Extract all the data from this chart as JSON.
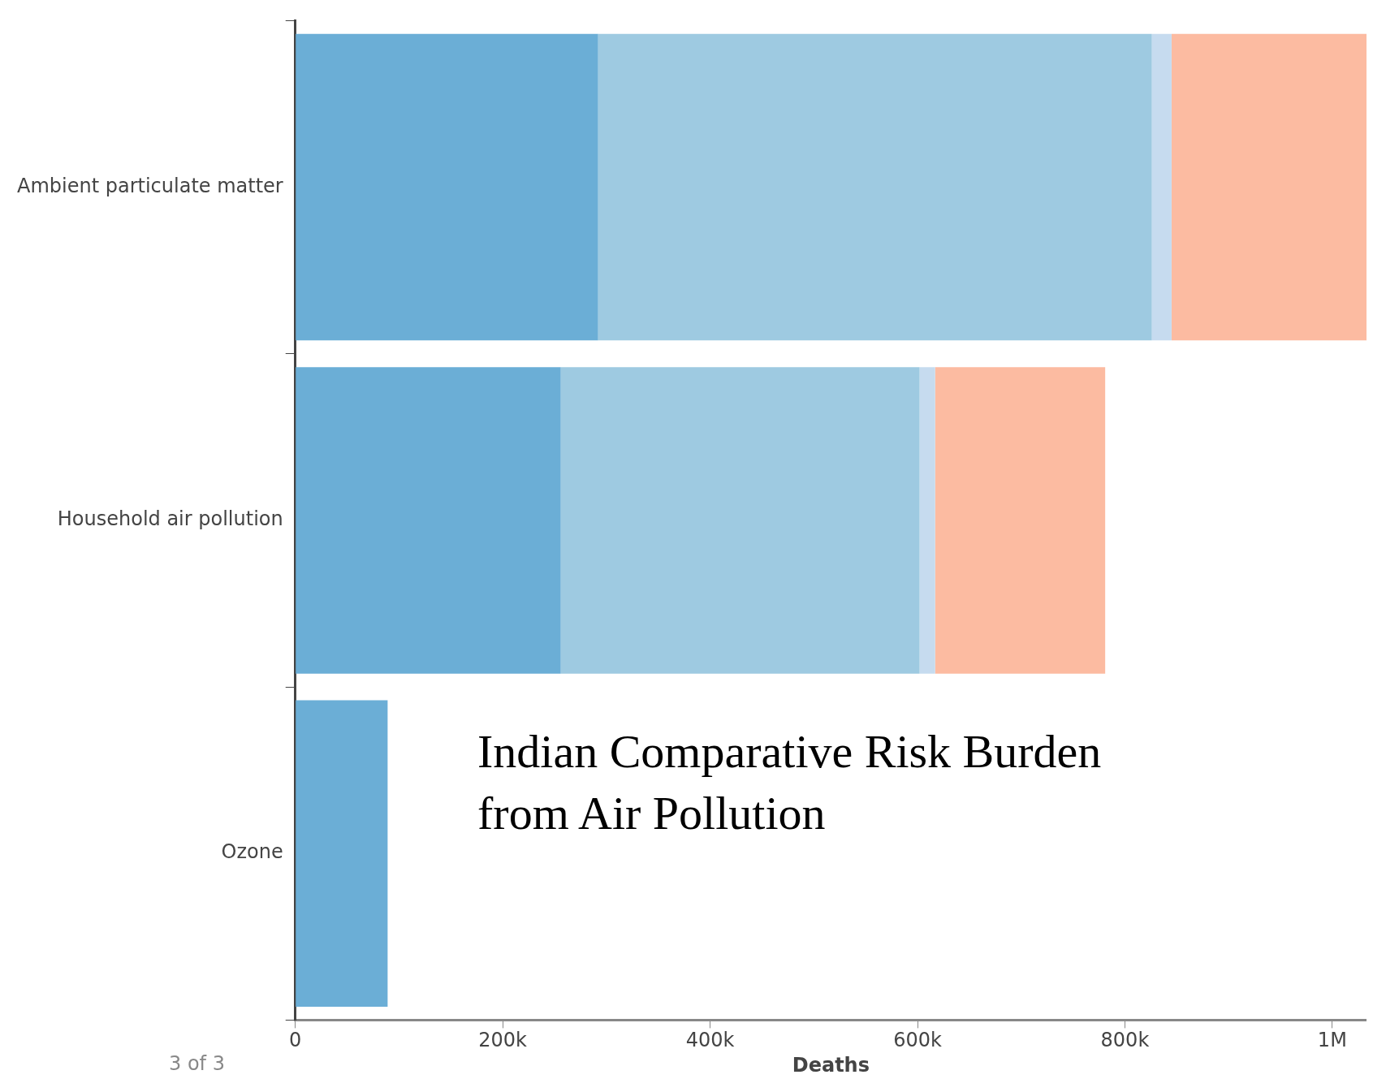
{
  "chart_data": {
    "type": "bar",
    "orientation": "horizontal",
    "stacked": true,
    "title": "Indian Comparative Risk Burden from Air Pollution",
    "xlabel": "Deaths",
    "categories": [
      "Ambient particulate matter",
      "Household air pollution",
      "Ozone"
    ],
    "series": [
      {
        "color": "#6baed6",
        "values": [
          292000,
          256000,
          89000
        ]
      },
      {
        "color": "#9ecae1",
        "values": [
          534000,
          346000,
          null
        ]
      },
      {
        "color": "#c6dbef",
        "values": [
          19000,
          15000,
          null
        ]
      },
      {
        "color": "#fcbba1",
        "values": [
          188000,
          164000,
          null
        ]
      }
    ],
    "xlim": [
      0,
      1033000
    ],
    "xticks": [
      {
        "value": 0,
        "label": "0"
      },
      {
        "value": 200000,
        "label": "200k"
      },
      {
        "value": 400000,
        "label": "400k"
      },
      {
        "value": 600000,
        "label": "600k"
      },
      {
        "value": 800000,
        "label": "800k"
      },
      {
        "value": 1000000,
        "label": "1M"
      }
    ],
    "grid": false,
    "legend": false,
    "annotations": [
      "3 of 3"
    ]
  }
}
